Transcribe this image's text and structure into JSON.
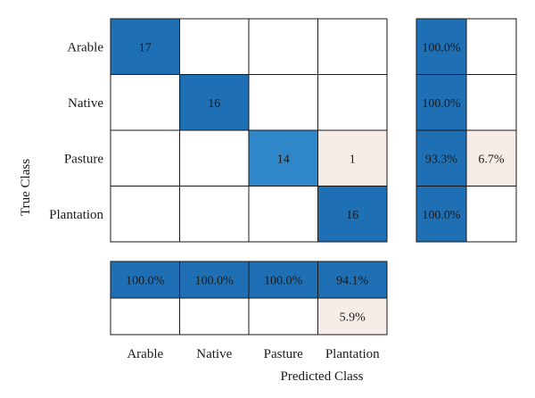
{
  "chart_data": {
    "type": "heatmap",
    "title": "",
    "xlabel": "Predicted Class",
    "ylabel": "True Class",
    "classes": [
      "Arable",
      "Native",
      "Pasture",
      "Plantation"
    ],
    "matrix": [
      [
        17,
        0,
        0,
        0
      ],
      [
        0,
        16,
        0,
        0
      ],
      [
        0,
        0,
        14,
        1
      ],
      [
        0,
        0,
        0,
        16
      ]
    ],
    "row_summary": [
      [
        "100.0%",
        ""
      ],
      [
        "100.0%",
        ""
      ],
      [
        "93.3%",
        "6.7%"
      ],
      [
        "100.0%",
        ""
      ]
    ],
    "column_summary": [
      [
        "100.0%",
        "100.0%",
        "100.0%",
        "94.1%"
      ],
      [
        "",
        "",
        "",
        "5.9%"
      ]
    ],
    "colors": {
      "correct_dark": "#1f6fb4",
      "correct_mid": "#2f86c8",
      "incorrect_light": "#f6ece8",
      "empty": "#ffffff",
      "border": "#1a1a1a",
      "text_dark": "#1a1a1a"
    }
  }
}
